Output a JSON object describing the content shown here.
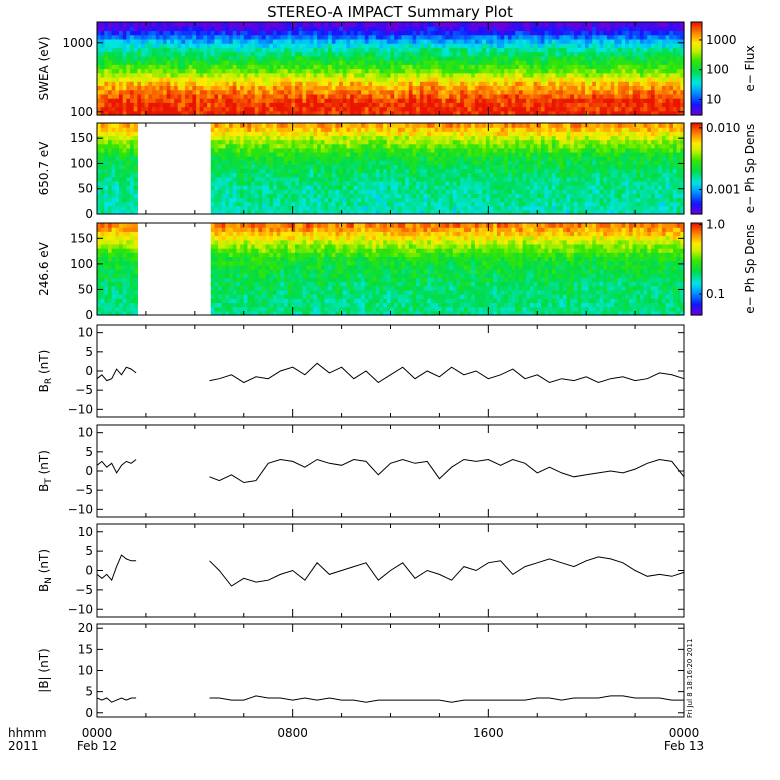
{
  "title": "STEREO-A IMPACT Summary Plot",
  "timestamp": "Fri Jul 8 18:16:20 2011",
  "x_axis": {
    "corner_top": "hhmm",
    "corner_bottom": "2011",
    "ticks": [
      {
        "hour": 0,
        "top": "0000",
        "bottom": "Feb 12"
      },
      {
        "hour": 8,
        "top": "0800",
        "bottom": ""
      },
      {
        "hour": 16,
        "top": "1600",
        "bottom": ""
      },
      {
        "hour": 24,
        "top": "0000",
        "bottom": "Feb 13"
      }
    ]
  },
  "chart_data": [
    {
      "type": "heatmap",
      "id": "swea",
      "ylabel": "SWEA (eV)",
      "y_scale": "log",
      "ylim": [
        90,
        2000
      ],
      "yticks": [
        {
          "v": 100,
          "label": "100"
        },
        {
          "v": 1000,
          "label": "1000"
        }
      ],
      "colorbar": {
        "label": "e− Flux",
        "scale": "log",
        "range": [
          3,
          4000
        ],
        "ticks": [
          {
            "v": 10,
            "label": "10"
          },
          {
            "v": 100,
            "label": "100"
          },
          {
            "v": 1000,
            "label": "1000"
          }
        ]
      },
      "energy_profile": [
        [
          90,
          4000
        ],
        [
          150,
          3000
        ],
        [
          250,
          1200
        ],
        [
          400,
          250
        ],
        [
          700,
          80
        ],
        [
          1000,
          30
        ],
        [
          1400,
          8
        ],
        [
          2000,
          3
        ]
      ],
      "data_gap_hours": []
    },
    {
      "type": "heatmap",
      "id": "pad650",
      "ylabel": "650.7 eV",
      "y_scale": "linear",
      "ylim": [
        0,
        180
      ],
      "yticks": [
        {
          "v": 0,
          "label": "0"
        },
        {
          "v": 50,
          "label": "50"
        },
        {
          "v": 100,
          "label": "100"
        },
        {
          "v": 150,
          "label": "150"
        }
      ],
      "colorbar": {
        "label": "e− Ph Sp Dens",
        "scale": "log",
        "range": [
          0.0004,
          0.012
        ],
        "ticks": [
          {
            "v": 0.001,
            "label": "0.001"
          },
          {
            "v": 0.01,
            "label": "0.010"
          }
        ]
      },
      "pitch_profile": [
        [
          0,
          0.0015
        ],
        [
          60,
          0.0017
        ],
        [
          110,
          0.0022
        ],
        [
          140,
          0.0035
        ],
        [
          165,
          0.006
        ],
        [
          180,
          0.008
        ]
      ],
      "data_gap_hours": [
        [
          1.6,
          4.6
        ]
      ]
    },
    {
      "type": "heatmap",
      "id": "pad246",
      "ylabel": "246.6 eV",
      "y_scale": "linear",
      "ylim": [
        0,
        180
      ],
      "yticks": [
        {
          "v": 0,
          "label": "0"
        },
        {
          "v": 50,
          "label": "50"
        },
        {
          "v": 100,
          "label": "100"
        },
        {
          "v": 150,
          "label": "150"
        }
      ],
      "colorbar": {
        "label": "e− Ph Sp Dens",
        "scale": "log",
        "range": [
          0.05,
          1.05
        ],
        "ticks": [
          {
            "v": 0.1,
            "label": "0.1"
          },
          {
            "v": 1,
            "label": "1.0"
          }
        ]
      },
      "pitch_profile": [
        [
          0,
          0.18
        ],
        [
          60,
          0.2
        ],
        [
          110,
          0.25
        ],
        [
          140,
          0.4
        ],
        [
          165,
          0.65
        ],
        [
          180,
          0.8
        ]
      ],
      "data_gap_hours": [
        [
          1.6,
          4.6
        ]
      ]
    },
    {
      "type": "line",
      "id": "br",
      "ylabel": "B_R (nT)",
      "sub": "R",
      "ylim": [
        -12,
        12
      ],
      "yticks": [
        {
          "v": -10,
          "label": "−10"
        },
        {
          "v": -5,
          "label": "−5"
        },
        {
          "v": 0,
          "label": "0"
        },
        {
          "v": 5,
          "label": "5"
        },
        {
          "v": 10,
          "label": "10"
        }
      ],
      "segments": [
        {
          "x": [
            0,
            0.2,
            0.4,
            0.6,
            0.8,
            1.0,
            1.2,
            1.4,
            1.6
          ],
          "y": [
            -2,
            -1,
            -2.5,
            -2,
            0.5,
            -1,
            1,
            0.5,
            -0.5
          ]
        },
        {
          "x": [
            4.6,
            5.0,
            5.5,
            6.0,
            6.5,
            7.0,
            7.5,
            8.0,
            8.5,
            9.0,
            9.5,
            10.0,
            10.5,
            11.0,
            11.5,
            12.0,
            12.5,
            13.0,
            13.5,
            14.0,
            14.5,
            15.0,
            15.5,
            16.0,
            16.5,
            17.0,
            17.5,
            18.0,
            18.5,
            19.0,
            19.5,
            20.0,
            20.5,
            21.0,
            21.5,
            22.0,
            22.5,
            23.0,
            23.5,
            24.0
          ],
          "y": [
            -2.5,
            -2,
            -1,
            -3,
            -1.5,
            -2,
            0,
            1,
            -1,
            2,
            -0.5,
            1,
            -2,
            0,
            -3,
            -1,
            1,
            -2,
            0,
            -1.5,
            1,
            -1,
            0,
            -2,
            -1,
            0.5,
            -2,
            -1,
            -3,
            -2,
            -2.5,
            -1.5,
            -3,
            -2,
            -1.5,
            -2.5,
            -2,
            -0.5,
            -1,
            -2
          ]
        }
      ]
    },
    {
      "type": "line",
      "id": "bt",
      "ylabel": "B_T (nT)",
      "sub": "T",
      "ylim": [
        -12,
        12
      ],
      "yticks": [
        {
          "v": -10,
          "label": "−10"
        },
        {
          "v": -5,
          "label": "−5"
        },
        {
          "v": 0,
          "label": "0"
        },
        {
          "v": 5,
          "label": "5"
        },
        {
          "v": 10,
          "label": "10"
        }
      ],
      "segments": [
        {
          "x": [
            0,
            0.2,
            0.4,
            0.6,
            0.8,
            1.0,
            1.2,
            1.4,
            1.6
          ],
          "y": [
            1.5,
            2.5,
            1,
            2,
            -0.5,
            1.5,
            2.5,
            2,
            3
          ]
        },
        {
          "x": [
            4.6,
            5.0,
            5.5,
            6.0,
            6.5,
            7.0,
            7.5,
            8.0,
            8.5,
            9.0,
            9.5,
            10.0,
            10.5,
            11.0,
            11.5,
            12.0,
            12.5,
            13.0,
            13.5,
            14.0,
            14.5,
            15.0,
            15.5,
            16.0,
            16.5,
            17.0,
            17.5,
            18.0,
            18.5,
            19.0,
            19.5,
            20.0,
            20.5,
            21.0,
            21.5,
            22.0,
            22.5,
            23.0,
            23.5,
            24.0
          ],
          "y": [
            -1.5,
            -2.5,
            -1,
            -3,
            -2.5,
            2,
            3,
            2.5,
            1,
            3,
            2,
            1.5,
            3,
            2.5,
            -1,
            2,
            3,
            2,
            2.5,
            -2,
            1,
            3,
            2.5,
            3,
            1.5,
            3,
            2,
            -0.5,
            1,
            -0.5,
            -1.5,
            -1,
            -0.5,
            0,
            -0.5,
            0.5,
            2,
            3,
            2.5,
            -1.5
          ]
        }
      ]
    },
    {
      "type": "line",
      "id": "bn",
      "ylabel": "B_N (nT)",
      "sub": "N",
      "ylim": [
        -12,
        12
      ],
      "yticks": [
        {
          "v": -10,
          "label": "−10"
        },
        {
          "v": -5,
          "label": "−5"
        },
        {
          "v": 0,
          "label": "0"
        },
        {
          "v": 5,
          "label": "5"
        },
        {
          "v": 10,
          "label": "10"
        }
      ],
      "segments": [
        {
          "x": [
            0,
            0.2,
            0.4,
            0.6,
            0.8,
            1.0,
            1.2,
            1.4,
            1.6
          ],
          "y": [
            -1,
            -2,
            -1,
            -2.5,
            1,
            4,
            3,
            2.5,
            2.5
          ]
        },
        {
          "x": [
            4.6,
            5.0,
            5.5,
            6.0,
            6.5,
            7.0,
            7.5,
            8.0,
            8.5,
            9.0,
            9.5,
            10.0,
            10.5,
            11.0,
            11.5,
            12.0,
            12.5,
            13.0,
            13.5,
            14.0,
            14.5,
            15.0,
            15.5,
            16.0,
            16.5,
            17.0,
            17.5,
            18.0,
            18.5,
            19.0,
            19.5,
            20.0,
            20.5,
            21.0,
            21.5,
            22.0,
            22.5,
            23.0,
            23.5,
            24.0
          ],
          "y": [
            2.5,
            0,
            -4,
            -2,
            -3,
            -2.5,
            -1,
            0,
            -2.5,
            2,
            -1,
            0,
            1,
            2,
            -2.5,
            0,
            2,
            -2,
            0,
            -1,
            -2.5,
            1,
            0,
            2,
            2.5,
            -1,
            1,
            2,
            3,
            2,
            1,
            2.5,
            3.5,
            3,
            2,
            0,
            -1.5,
            -1,
            -1.5,
            -0.5
          ]
        }
      ]
    },
    {
      "type": "line",
      "id": "bmag",
      "ylabel": "|B| (nT)",
      "sub": "",
      "ylim": [
        -1,
        21
      ],
      "yticks": [
        {
          "v": 0,
          "label": "0"
        },
        {
          "v": 5,
          "label": "5"
        },
        {
          "v": 10,
          "label": "10"
        },
        {
          "v": 15,
          "label": "15"
        },
        {
          "v": 20,
          "label": "20"
        }
      ],
      "segments": [
        {
          "x": [
            0,
            0.2,
            0.4,
            0.6,
            0.8,
            1.0,
            1.2,
            1.4,
            1.6
          ],
          "y": [
            3.5,
            3,
            3.5,
            2.5,
            3,
            3.5,
            3,
            3.5,
            3.5
          ]
        },
        {
          "x": [
            4.6,
            5.0,
            5.5,
            6.0,
            6.5,
            7.0,
            7.5,
            8.0,
            8.5,
            9.0,
            9.5,
            10.0,
            10.5,
            11.0,
            11.5,
            12.0,
            12.5,
            13.0,
            13.5,
            14.0,
            14.5,
            15.0,
            15.5,
            16.0,
            16.5,
            17.0,
            17.5,
            18.0,
            18.5,
            19.0,
            19.5,
            20.0,
            20.5,
            21.0,
            21.5,
            22.0,
            22.5,
            23.0,
            23.5,
            24.0
          ],
          "y": [
            3.5,
            3.5,
            3,
            3,
            4,
            3.5,
            3.5,
            3,
            3.5,
            3,
            3.5,
            3,
            3,
            2.5,
            3,
            3,
            3,
            3,
            3,
            3,
            2.5,
            3,
            3,
            3,
            3,
            3,
            3,
            3.5,
            3.5,
            3,
            3.5,
            3.5,
            3.5,
            4,
            4,
            3.5,
            3.5,
            3.5,
            3,
            3
          ]
        }
      ]
    }
  ]
}
